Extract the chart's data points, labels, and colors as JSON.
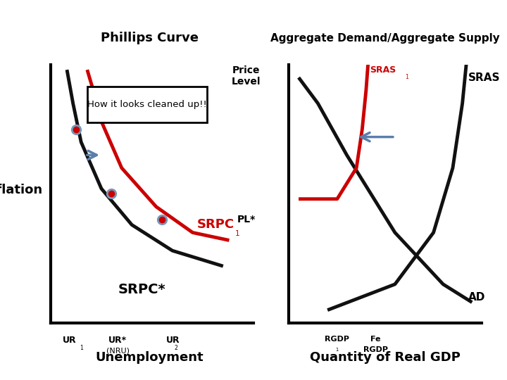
{
  "bg_color": "#ffffff",
  "title_left": "Phillips Curve",
  "title_right": "Aggregate Demand/Aggregate Supply",
  "ylabel_left": "Inflation",
  "xlabel_left": "Unemployment",
  "xlabel_right": "Quantity of Real GDP",
  "annotation_box": "How it looks cleaned up!!",
  "red_color": "#cc0000",
  "black_color": "#111111",
  "blue_color": "#5b7faa",
  "dot_color": "#cc0000",
  "dot_edge": "#7799bb"
}
